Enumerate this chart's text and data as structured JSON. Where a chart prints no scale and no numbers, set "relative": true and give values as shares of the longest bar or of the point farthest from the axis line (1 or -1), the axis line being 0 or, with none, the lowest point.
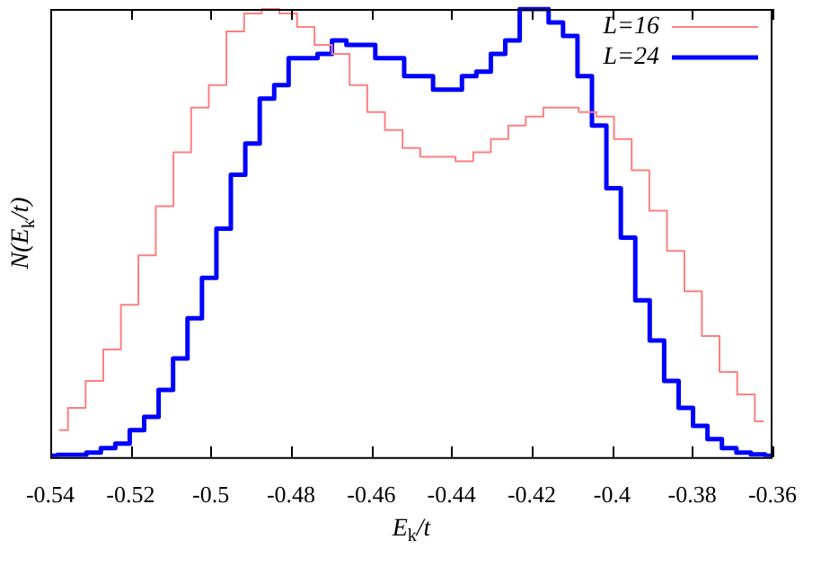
{
  "chart_data": {
    "type": "step",
    "relative": true,
    "xlabel": "E$_{k}$/t",
    "ylabel": "N(E$_{k}$/t)",
    "xlim": [
      -0.54,
      -0.36
    ],
    "xticks": [
      -0.54,
      -0.52,
      -0.5,
      -0.48,
      -0.46,
      -0.44,
      -0.42,
      -0.4,
      -0.38,
      -0.36
    ],
    "legend": "top right",
    "series": [
      {
        "name": "L=16",
        "color": "#ff7f7f",
        "x": [
          -0.5378,
          -0.5334,
          -0.529,
          -0.5246,
          -0.5202,
          -0.5159,
          -0.5115,
          -0.5071,
          -0.5027,
          -0.4983,
          -0.4939,
          -0.4895,
          -0.4851,
          -0.4807,
          -0.4763,
          -0.472,
          -0.4676,
          -0.4632,
          -0.4588,
          -0.4544,
          -0.45,
          -0.4456,
          -0.4412,
          -0.4368,
          -0.4324,
          -0.428,
          -0.4237,
          -0.4193,
          -0.4149,
          -0.4105,
          -0.4061,
          -0.4017,
          -0.3973,
          -0.3929,
          -0.3885,
          -0.3841,
          -0.3798,
          -0.3754,
          -0.371,
          -0.3666,
          -0.3622
        ],
        "values": [
          0.06,
          0.11,
          0.17,
          0.24,
          0.34,
          0.45,
          0.56,
          0.68,
          0.78,
          0.83,
          0.95,
          0.99,
          1.0,
          0.99,
          0.96,
          0.92,
          0.9,
          0.83,
          0.77,
          0.73,
          0.69,
          0.67,
          0.67,
          0.66,
          0.68,
          0.71,
          0.74,
          0.76,
          0.78,
          0.78,
          0.77,
          0.76,
          0.71,
          0.64,
          0.55,
          0.46,
          0.37,
          0.27,
          0.19,
          0.14,
          0.08
        ]
      },
      {
        "name": "L=24",
        "color": "#0000ff",
        "x": [
          -0.54,
          -0.5364,
          -0.5328,
          -0.5292,
          -0.5256,
          -0.522,
          -0.5184,
          -0.5148,
          -0.5112,
          -0.5076,
          -0.504,
          -0.5004,
          -0.4968,
          -0.4932,
          -0.4896,
          -0.486,
          -0.4824,
          -0.4788,
          -0.4752,
          -0.4716,
          -0.468,
          -0.4644,
          -0.4608,
          -0.4572,
          -0.4536,
          -0.45,
          -0.4464,
          -0.4428,
          -0.4392,
          -0.4356,
          -0.432,
          -0.4284,
          -0.4248,
          -0.4212,
          -0.4176,
          -0.414,
          -0.4104,
          -0.4068,
          -0.4032,
          -0.3996,
          -0.396,
          -0.3924,
          -0.3888,
          -0.3852,
          -0.3816,
          -0.378,
          -0.3744,
          -0.3708,
          -0.3672,
          -0.3636,
          -0.36
        ],
        "values": [
          0.003,
          0.005,
          0.005,
          0.01,
          0.02,
          0.03,
          0.06,
          0.09,
          0.15,
          0.22,
          0.31,
          0.4,
          0.51,
          0.63,
          0.7,
          0.8,
          0.83,
          0.89,
          0.89,
          0.9,
          0.93,
          0.92,
          0.92,
          0.89,
          0.89,
          0.85,
          0.85,
          0.82,
          0.82,
          0.85,
          0.86,
          0.9,
          0.93,
          1.0,
          1.0,
          0.97,
          0.94,
          0.85,
          0.74,
          0.6,
          0.49,
          0.35,
          0.26,
          0.17,
          0.11,
          0.07,
          0.04,
          0.02,
          0.01,
          0.006,
          0.003
        ]
      }
    ]
  }
}
